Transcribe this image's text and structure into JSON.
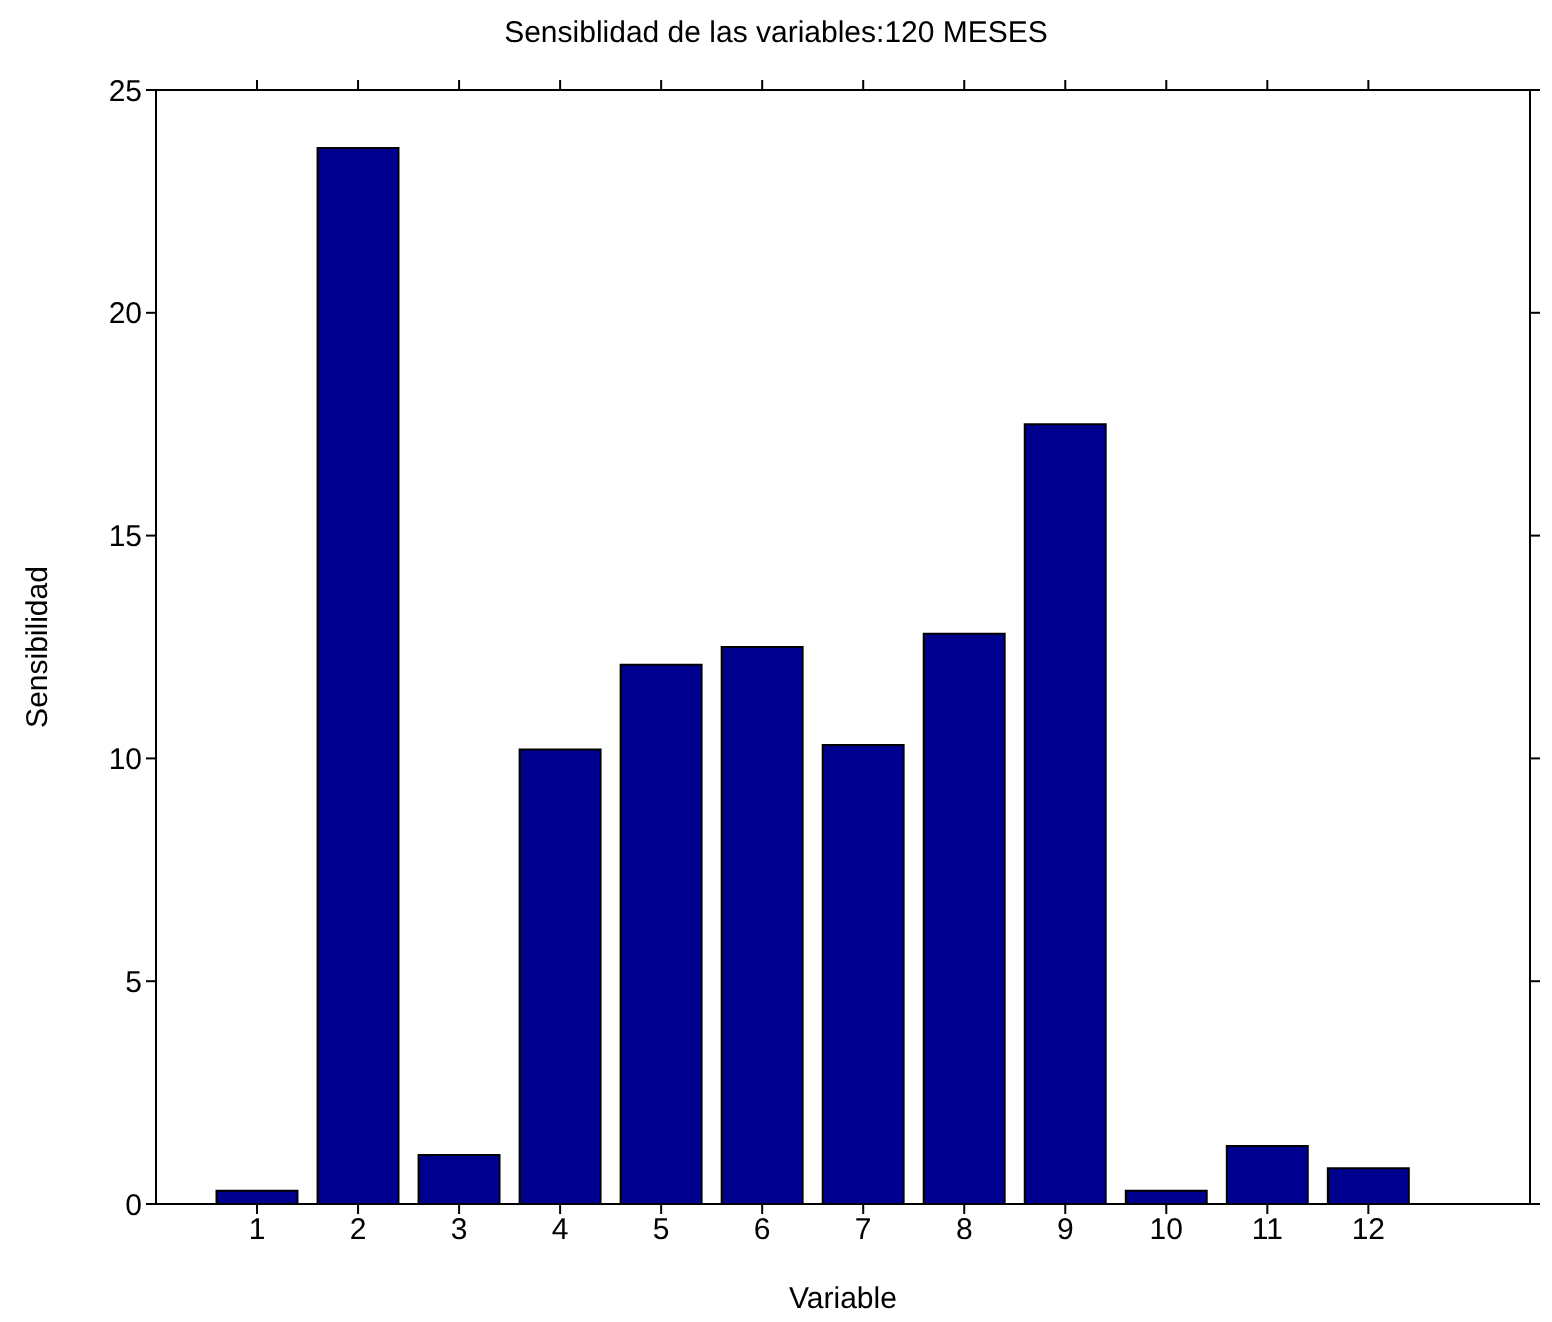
{
  "chart_data": {
    "type": "bar",
    "title": "Sensiblidad de las variables:120 MESES",
    "xlabel": "Variable",
    "ylabel": "Sensibilidad",
    "x": [
      1,
      2,
      3,
      4,
      5,
      6,
      7,
      8,
      9,
      10,
      11,
      12
    ],
    "values": [
      0.3,
      23.7,
      1.1,
      10.2,
      12.1,
      12.5,
      10.3,
      12.8,
      17.5,
      0.3,
      1.3,
      0.8
    ],
    "color": "#00008f",
    "xlim": [
      0,
      13.6
    ],
    "xticks": [
      1,
      2,
      3,
      4,
      5,
      6,
      7,
      8,
      9,
      10,
      11,
      12
    ],
    "ylim": [
      0,
      25
    ],
    "yticks": [
      0,
      5,
      10,
      15,
      20,
      25
    ],
    "grid": false
  }
}
